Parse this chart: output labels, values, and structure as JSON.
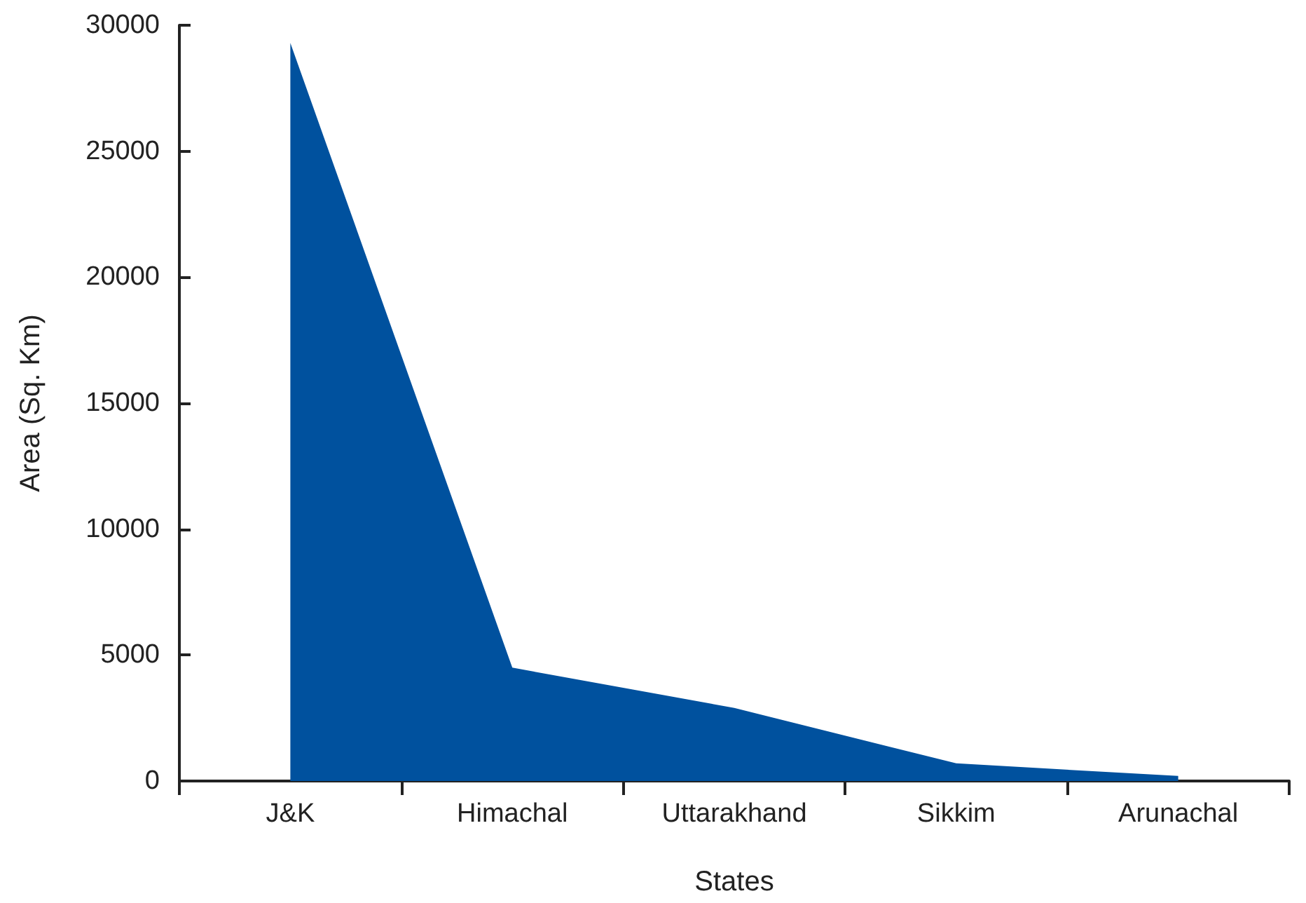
{
  "chart_data": {
    "type": "area",
    "xlabel": "States",
    "ylabel": "Area (Sq. Km)",
    "categories": [
      "J&K",
      "Himachal",
      "Uttarakhand",
      "Sikkim",
      "Arunachal"
    ],
    "values": [
      29300,
      4500,
      2900,
      700,
      200
    ],
    "color": "#00519e",
    "ylim": [
      0,
      30000
    ],
    "yticks": [
      0,
      5000,
      10000,
      15000,
      20000,
      25000,
      30000
    ],
    "grid": false,
    "marker": "none"
  }
}
